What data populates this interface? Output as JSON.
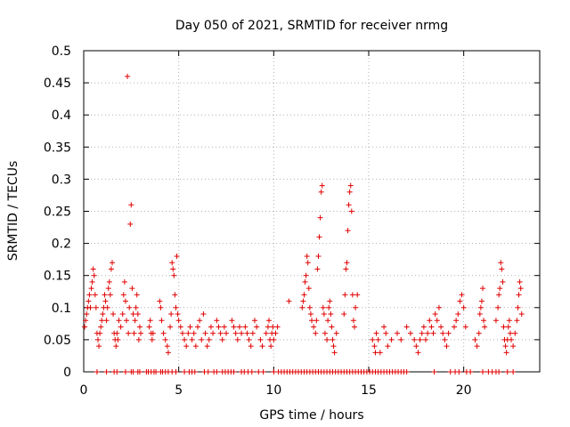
{
  "chart_data": {
    "type": "scatter",
    "title": "Day 050 of 2021, SRMTID for receiver nrmg",
    "xlabel": "GPS time / hours",
    "ylabel": "SRMTID / TECUs",
    "xlim": [
      0,
      24
    ],
    "ylim": [
      0,
      0.5
    ],
    "grid": true,
    "marker": "+",
    "color": "#e00000",
    "x_ticks": [
      {
        "value": 0,
        "label": "0"
      },
      {
        "value": 5,
        "label": "5"
      },
      {
        "value": 10,
        "label": "10"
      },
      {
        "value": 15,
        "label": "15"
      },
      {
        "value": 20,
        "label": "20"
      }
    ],
    "y_ticks": [
      {
        "value": 0,
        "label": "0"
      },
      {
        "value": 0.05,
        "label": "0.05"
      },
      {
        "value": 0.1,
        "label": "0.1"
      },
      {
        "value": 0.15,
        "label": "0.15"
      },
      {
        "value": 0.2,
        "label": "0.2"
      },
      {
        "value": 0.25,
        "label": "0.25"
      },
      {
        "value": 0.3,
        "label": "0.3"
      },
      {
        "value": 0.35,
        "label": "0.35"
      },
      {
        "value": 0.4,
        "label": "0.4"
      },
      {
        "value": 0.45,
        "label": "0.45"
      },
      {
        "value": 0.5,
        "label": "0.5"
      }
    ],
    "series": [
      {
        "name": "SRMTID",
        "points": [
          [
            0.05,
            0.07
          ],
          [
            0.1,
            0.08
          ],
          [
            0.15,
            0.09
          ],
          [
            0.2,
            0.1
          ],
          [
            0.25,
            0.11
          ],
          [
            0.3,
            0.12
          ],
          [
            0.35,
            0.1
          ],
          [
            0.4,
            0.13
          ],
          [
            0.45,
            0.14
          ],
          [
            0.5,
            0.16
          ],
          [
            0.55,
            0.15
          ],
          [
            0.6,
            0.12
          ],
          [
            0.65,
            0.1
          ],
          [
            0.7,
            0.06
          ],
          [
            0.75,
            0.05
          ],
          [
            0.8,
            0.04
          ],
          [
            0.85,
            0.06
          ],
          [
            0.9,
            0.07
          ],
          [
            0.95,
            0.08
          ],
          [
            1.0,
            0.09
          ],
          [
            1.05,
            0.1
          ],
          [
            1.1,
            0.12
          ],
          [
            1.15,
            0.11
          ],
          [
            1.2,
            0.08
          ],
          [
            1.25,
            0.1
          ],
          [
            1.3,
            0.13
          ],
          [
            1.35,
            0.14
          ],
          [
            1.4,
            0.12
          ],
          [
            1.45,
            0.16
          ],
          [
            1.5,
            0.17
          ],
          [
            1.55,
            0.09
          ],
          [
            1.6,
            0.06
          ],
          [
            1.65,
            0.05
          ],
          [
            1.7,
            0.04
          ],
          [
            1.75,
            0.06
          ],
          [
            1.8,
            0.05
          ],
          [
            1.85,
            0.08
          ],
          [
            1.95,
            0.07
          ],
          [
            2.05,
            0.09
          ],
          [
            2.1,
            0.12
          ],
          [
            2.15,
            0.14
          ],
          [
            2.2,
            0.11
          ],
          [
            2.25,
            0.08
          ],
          [
            2.3,
            0.46
          ],
          [
            2.35,
            0.06
          ],
          [
            2.4,
            0.1
          ],
          [
            2.45,
            0.23
          ],
          [
            2.5,
            0.26
          ],
          [
            2.55,
            0.13
          ],
          [
            2.6,
            0.09
          ],
          [
            2.65,
            0.06
          ],
          [
            2.7,
            0.08
          ],
          [
            2.75,
            0.1
          ],
          [
            2.8,
            0.12
          ],
          [
            2.85,
            0.09
          ],
          [
            2.9,
            0.05
          ],
          [
            2.95,
            0.07
          ],
          [
            3.0,
            0.06
          ],
          [
            3.45,
            0.07
          ],
          [
            3.5,
            0.08
          ],
          [
            3.55,
            0.06
          ],
          [
            3.6,
            0.05
          ],
          [
            3.65,
            0.06
          ],
          [
            4.0,
            0.11
          ],
          [
            4.05,
            0.1
          ],
          [
            4.1,
            0.08
          ],
          [
            4.2,
            0.06
          ],
          [
            4.3,
            0.05
          ],
          [
            4.4,
            0.04
          ],
          [
            4.45,
            0.03
          ],
          [
            4.55,
            0.07
          ],
          [
            4.6,
            0.09
          ],
          [
            4.65,
            0.17
          ],
          [
            4.7,
            0.16
          ],
          [
            4.75,
            0.15
          ],
          [
            4.8,
            0.12
          ],
          [
            4.85,
            0.1
          ],
          [
            4.9,
            0.18
          ],
          [
            4.95,
            0.09
          ],
          [
            5.0,
            0.08
          ],
          [
            5.1,
            0.07
          ],
          [
            5.2,
            0.06
          ],
          [
            5.3,
            0.05
          ],
          [
            5.4,
            0.04
          ],
          [
            5.5,
            0.06
          ],
          [
            5.6,
            0.07
          ],
          [
            5.7,
            0.05
          ],
          [
            5.8,
            0.06
          ],
          [
            5.9,
            0.04
          ],
          [
            6.0,
            0.07
          ],
          [
            6.1,
            0.08
          ],
          [
            6.2,
            0.05
          ],
          [
            6.3,
            0.09
          ],
          [
            6.4,
            0.06
          ],
          [
            6.5,
            0.04
          ],
          [
            6.6,
            0.05
          ],
          [
            6.7,
            0.07
          ],
          [
            6.8,
            0.06
          ],
          [
            7.0,
            0.08
          ],
          [
            7.1,
            0.07
          ],
          [
            7.2,
            0.06
          ],
          [
            7.3,
            0.05
          ],
          [
            7.4,
            0.07
          ],
          [
            7.5,
            0.06
          ],
          [
            7.8,
            0.08
          ],
          [
            7.9,
            0.07
          ],
          [
            8.0,
            0.06
          ],
          [
            8.1,
            0.05
          ],
          [
            8.2,
            0.07
          ],
          [
            8.3,
            0.06
          ],
          [
            8.5,
            0.07
          ],
          [
            8.6,
            0.06
          ],
          [
            8.7,
            0.05
          ],
          [
            8.8,
            0.04
          ],
          [
            8.9,
            0.06
          ],
          [
            9.0,
            0.08
          ],
          [
            9.1,
            0.07
          ],
          [
            9.3,
            0.05
          ],
          [
            9.4,
            0.04
          ],
          [
            9.6,
            0.06
          ],
          [
            9.7,
            0.07
          ],
          [
            9.75,
            0.08
          ],
          [
            9.8,
            0.05
          ],
          [
            9.85,
            0.04
          ],
          [
            9.9,
            0.06
          ],
          [
            9.95,
            0.07
          ],
          [
            10.0,
            0.05
          ],
          [
            10.1,
            0.06
          ],
          [
            10.2,
            0.07
          ],
          [
            10.8,
            0.11
          ],
          [
            11.5,
            0.1
          ],
          [
            11.55,
            0.11
          ],
          [
            11.6,
            0.12
          ],
          [
            11.65,
            0.14
          ],
          [
            11.7,
            0.15
          ],
          [
            11.75,
            0.18
          ],
          [
            11.8,
            0.17
          ],
          [
            11.85,
            0.13
          ],
          [
            11.9,
            0.1
          ],
          [
            11.95,
            0.09
          ],
          [
            12.0,
            0.08
          ],
          [
            12.1,
            0.07
          ],
          [
            12.2,
            0.06
          ],
          [
            12.25,
            0.08
          ],
          [
            12.3,
            0.16
          ],
          [
            12.35,
            0.18
          ],
          [
            12.4,
            0.21
          ],
          [
            12.45,
            0.24
          ],
          [
            12.5,
            0.28
          ],
          [
            12.55,
            0.29
          ],
          [
            12.6,
            0.1
          ],
          [
            12.65,
            0.09
          ],
          [
            12.7,
            0.06
          ],
          [
            12.8,
            0.05
          ],
          [
            12.85,
            0.08
          ],
          [
            12.9,
            0.1
          ],
          [
            12.95,
            0.11
          ],
          [
            13.0,
            0.09
          ],
          [
            13.05,
            0.07
          ],
          [
            13.1,
            0.05
          ],
          [
            13.15,
            0.04
          ],
          [
            13.2,
            0.03
          ],
          [
            13.3,
            0.06
          ],
          [
            13.7,
            0.09
          ],
          [
            13.75,
            0.12
          ],
          [
            13.8,
            0.16
          ],
          [
            13.85,
            0.17
          ],
          [
            13.9,
            0.22
          ],
          [
            13.95,
            0.26
          ],
          [
            14.0,
            0.28
          ],
          [
            14.05,
            0.29
          ],
          [
            14.1,
            0.25
          ],
          [
            14.15,
            0.12
          ],
          [
            14.2,
            0.08
          ],
          [
            14.25,
            0.07
          ],
          [
            14.3,
            0.1
          ],
          [
            14.4,
            0.12
          ],
          [
            15.2,
            0.05
          ],
          [
            15.3,
            0.04
          ],
          [
            15.35,
            0.03
          ],
          [
            15.4,
            0.06
          ],
          [
            15.5,
            0.05
          ],
          [
            15.6,
            0.03
          ],
          [
            15.8,
            0.07
          ],
          [
            15.9,
            0.06
          ],
          [
            16.0,
            0.04
          ],
          [
            16.2,
            0.05
          ],
          [
            16.5,
            0.06
          ],
          [
            16.7,
            0.05
          ],
          [
            17.0,
            0.07
          ],
          [
            17.2,
            0.06
          ],
          [
            17.4,
            0.05
          ],
          [
            17.5,
            0.04
          ],
          [
            17.6,
            0.03
          ],
          [
            17.7,
            0.05
          ],
          [
            17.8,
            0.06
          ],
          [
            17.9,
            0.07
          ],
          [
            18.0,
            0.05
          ],
          [
            18.1,
            0.06
          ],
          [
            18.2,
            0.08
          ],
          [
            18.3,
            0.07
          ],
          [
            18.4,
            0.06
          ],
          [
            18.5,
            0.09
          ],
          [
            18.6,
            0.08
          ],
          [
            18.7,
            0.1
          ],
          [
            18.8,
            0.07
          ],
          [
            18.9,
            0.06
          ],
          [
            19.0,
            0.05
          ],
          [
            19.1,
            0.04
          ],
          [
            19.2,
            0.06
          ],
          [
            19.5,
            0.07
          ],
          [
            19.6,
            0.08
          ],
          [
            19.7,
            0.09
          ],
          [
            19.8,
            0.11
          ],
          [
            19.9,
            0.12
          ],
          [
            20.0,
            0.1
          ],
          [
            20.1,
            0.07
          ],
          [
            20.6,
            0.05
          ],
          [
            20.7,
            0.04
          ],
          [
            20.8,
            0.06
          ],
          [
            20.85,
            0.09
          ],
          [
            20.9,
            0.1
          ],
          [
            20.95,
            0.11
          ],
          [
            21.0,
            0.13
          ],
          [
            21.05,
            0.08
          ],
          [
            21.1,
            0.07
          ],
          [
            21.7,
            0.08
          ],
          [
            21.8,
            0.1
          ],
          [
            21.85,
            0.12
          ],
          [
            21.9,
            0.13
          ],
          [
            21.95,
            0.17
          ],
          [
            22.0,
            0.16
          ],
          [
            22.05,
            0.14
          ],
          [
            22.1,
            0.07
          ],
          [
            22.15,
            0.05
          ],
          [
            22.2,
            0.04
          ],
          [
            22.25,
            0.03
          ],
          [
            22.3,
            0.05
          ],
          [
            22.35,
            0.07
          ],
          [
            22.4,
            0.08
          ],
          [
            22.45,
            0.06
          ],
          [
            22.5,
            0.05
          ],
          [
            22.6,
            0.04
          ],
          [
            22.7,
            0.06
          ],
          [
            22.8,
            0.08
          ],
          [
            22.85,
            0.1
          ],
          [
            22.9,
            0.12
          ],
          [
            22.95,
            0.14
          ],
          [
            23.0,
            0.13
          ],
          [
            23.05,
            0.09
          ]
        ],
        "zero_points": [
          0.7,
          1.2,
          1.6,
          1.75,
          2.2,
          2.5,
          2.6,
          2.85,
          2.95,
          3.3,
          3.4,
          3.55,
          3.7,
          3.8,
          4.05,
          4.15,
          4.3,
          4.45,
          4.65,
          4.85,
          5.3,
          5.55,
          5.7,
          5.85,
          6.35,
          6.55,
          6.85,
          7.0,
          7.3,
          7.45,
          7.6,
          7.75,
          7.9,
          8.3,
          8.45,
          8.65,
          8.85,
          9.2,
          9.45,
          10.0,
          10.25,
          10.4,
          10.55,
          10.7,
          10.85,
          11.0,
          11.15,
          11.3,
          11.45,
          11.6,
          11.75,
          11.9,
          12.05,
          12.2,
          12.35,
          12.5,
          12.65,
          12.8,
          12.95,
          13.1,
          13.25,
          13.4,
          13.55,
          13.7,
          13.85,
          14.0,
          14.15,
          14.3,
          14.45,
          14.6,
          14.75,
          14.9,
          15.05,
          15.2,
          15.35,
          15.5,
          15.65,
          15.8,
          15.95,
          16.1,
          16.25,
          16.4,
          16.55,
          16.7,
          16.85,
          17.0,
          18.45,
          19.3,
          19.55,
          19.75,
          20.15,
          20.35,
          21.0,
          21.3,
          21.5,
          21.7,
          21.85,
          22.3,
          22.6
        ]
      }
    ]
  }
}
